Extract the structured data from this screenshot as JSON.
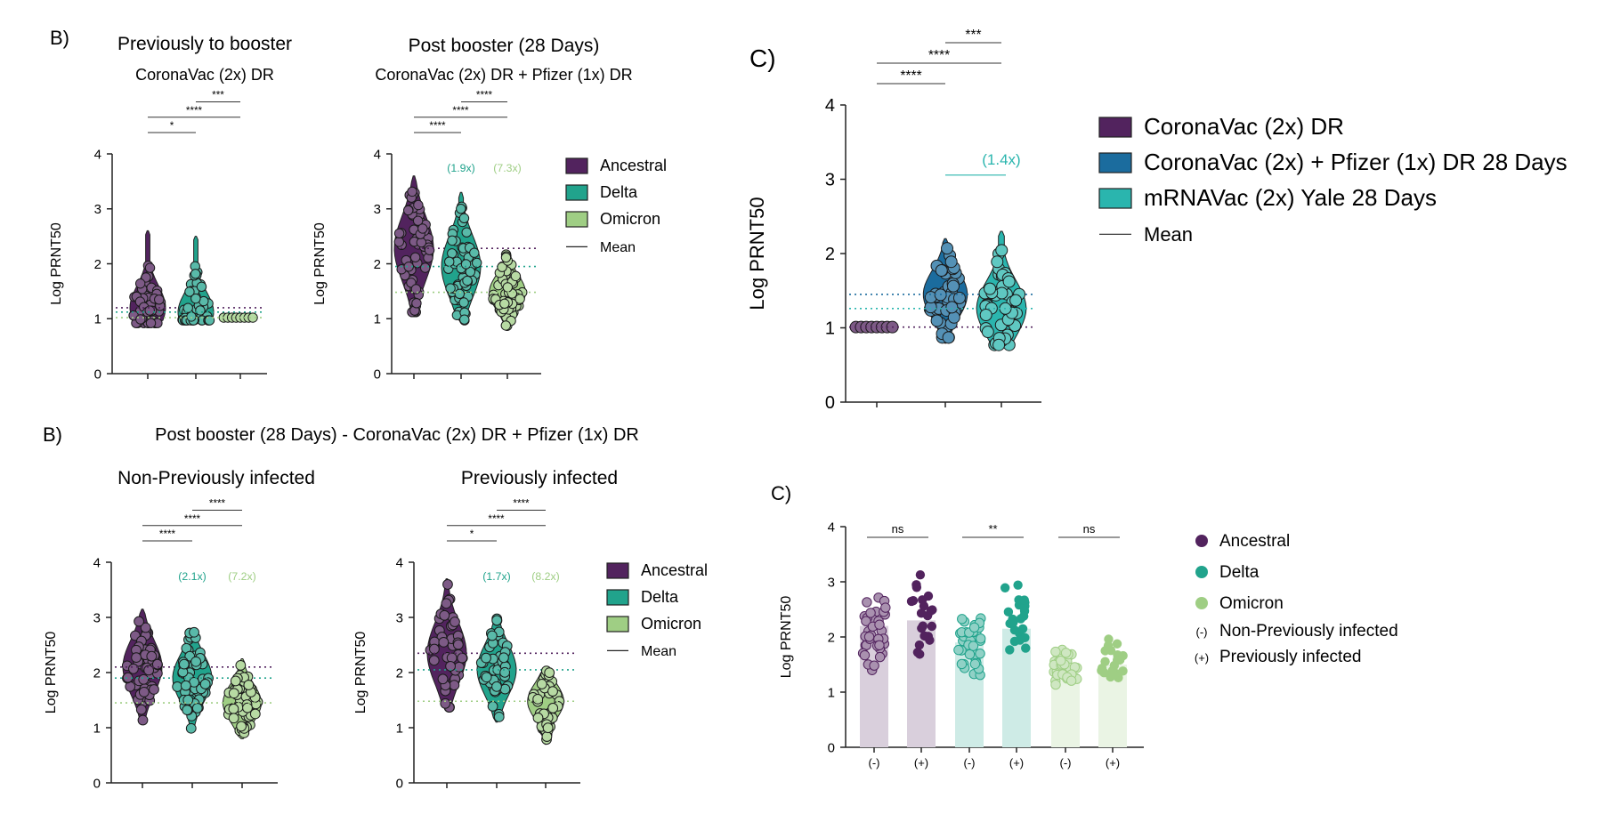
{
  "colors": {
    "ancestral": "#52235e",
    "delta": "#21a38c",
    "omicron": "#9fce84",
    "pfizer": "#1b6c9e",
    "yale": "#2ab5ae"
  },
  "chart_data": [
    {
      "id": "panelA",
      "type": "violin",
      "panel_letter": "B)",
      "title": "Previously to booster",
      "subtitle": "CoronaVac (2x) DR",
      "xlabel": "",
      "ylabel": "Log PRNT50",
      "ylim": [
        0,
        4
      ],
      "yticks": [
        "0",
        "1",
        "2",
        "3",
        "4"
      ],
      "series": [
        {
          "name": "Ancestral",
          "color": "ancestral",
          "min": 0.9,
          "max": 2.6,
          "mean": 1.2
        },
        {
          "name": "Delta",
          "color": "delta",
          "min": 0.95,
          "max": 2.5,
          "mean": 1.12
        },
        {
          "name": "Omicron",
          "color": "omicron",
          "min": 1.0,
          "max": 1.02,
          "mean": 1.02
        }
      ],
      "brackets": [
        {
          "from": 0,
          "to": 1,
          "label": "*"
        },
        {
          "from": 0,
          "to": 2,
          "label": "****"
        },
        {
          "from": 1,
          "to": 2,
          "label": "***"
        }
      ],
      "folds": [],
      "legend": ""
    },
    {
      "id": "panelB",
      "type": "violin",
      "panel_letter": "",
      "title": "Post booster (28 Days)",
      "subtitle": "CoronaVac (2x) DR + Pfizer (1x) DR",
      "xlabel": "",
      "ylabel": "Log PRNT50",
      "ylim": [
        0,
        4
      ],
      "yticks": [
        "0",
        "1",
        "2",
        "3",
        "4"
      ],
      "series": [
        {
          "name": "Ancestral",
          "color": "ancestral",
          "min": 1.1,
          "max": 3.6,
          "mean": 2.28
        },
        {
          "name": "Delta",
          "color": "delta",
          "min": 0.95,
          "max": 3.3,
          "mean": 1.95
        },
        {
          "name": "Omicron",
          "color": "omicron",
          "min": 0.85,
          "max": 2.2,
          "mean": 1.48
        }
      ],
      "brackets": [
        {
          "from": 0,
          "to": 1,
          "label": "****"
        },
        {
          "from": 0,
          "to": 2,
          "label": "****"
        },
        {
          "from": 1,
          "to": 2,
          "label": "****"
        }
      ],
      "folds": [
        {
          "index": 1,
          "label": "(1.9x)"
        },
        {
          "index": 2,
          "label": "(7.3x)"
        }
      ],
      "legend": "right"
    },
    {
      "id": "panelC",
      "type": "violin",
      "panel_letter": "C)",
      "title": "",
      "subtitle": "",
      "xlabel": "",
      "ylabel": "Log PRNT50",
      "ylim": [
        0,
        4
      ],
      "yticks": [
        "0",
        "1",
        "2",
        "3",
        "4"
      ],
      "series": [
        {
          "name": "CoronaVac (2x) DR",
          "color": "ancestral",
          "min": 0.97,
          "max": 1.03,
          "mean": 1.01
        },
        {
          "name": "CoronaVac (2x) + Pfizer (1x) DR 28 Days",
          "color": "pfizer",
          "min": 0.85,
          "max": 2.2,
          "mean": 1.45
        },
        {
          "name": "mRNAVac (2x) Yale 28 Days",
          "color": "yale",
          "min": 0.75,
          "max": 2.3,
          "mean": 1.26
        }
      ],
      "brackets": [
        {
          "from": 0,
          "to": 1,
          "label": "****"
        },
        {
          "from": 0,
          "to": 2,
          "label": "****"
        },
        {
          "from": 1,
          "to": 2,
          "label": "***"
        }
      ],
      "folds": [
        {
          "index": 2,
          "label": "(1.4x)",
          "underline": true
        }
      ],
      "legend": "right"
    },
    {
      "id": "panelD",
      "type": "violin",
      "panel_letter": "B)",
      "title": "Non-Previously infected",
      "subtitle": "",
      "xlabel": "",
      "ylabel": "Log PRNT50",
      "ylim": [
        0,
        4
      ],
      "yticks": [
        "0",
        "1",
        "2",
        "3",
        "4"
      ],
      "series": [
        {
          "name": "Ancestral",
          "color": "ancestral",
          "min": 1.1,
          "max": 3.15,
          "mean": 2.1
        },
        {
          "name": "Delta",
          "color": "delta",
          "min": 0.95,
          "max": 2.75,
          "mean": 1.9
        },
        {
          "name": "Omicron",
          "color": "omicron",
          "min": 0.8,
          "max": 2.25,
          "mean": 1.45
        }
      ],
      "brackets": [
        {
          "from": 0,
          "to": 1,
          "label": "****"
        },
        {
          "from": 0,
          "to": 2,
          "label": "****"
        },
        {
          "from": 1,
          "to": 2,
          "label": "****"
        }
      ],
      "folds": [
        {
          "index": 1,
          "label": "(2.1x)"
        },
        {
          "index": 2,
          "label": "(7.2x)"
        }
      ],
      "legend": ""
    },
    {
      "id": "panelE",
      "type": "violin",
      "panel_letter": "",
      "title": "Previously infected",
      "subtitle": "",
      "xlabel": "",
      "ylabel": "Log PRNT50",
      "ylim": [
        0,
        4
      ],
      "yticks": [
        "0",
        "1",
        "2",
        "3",
        "4"
      ],
      "series": [
        {
          "name": "Ancestral",
          "color": "ancestral",
          "min": 1.35,
          "max": 3.7,
          "mean": 2.35
        },
        {
          "name": "Delta",
          "color": "delta",
          "min": 1.1,
          "max": 3.05,
          "mean": 2.05
        },
        {
          "name": "Omicron",
          "color": "omicron",
          "min": 0.7,
          "max": 2.05,
          "mean": 1.48
        }
      ],
      "brackets": [
        {
          "from": 0,
          "to": 1,
          "label": "*"
        },
        {
          "from": 0,
          "to": 2,
          "label": "****"
        },
        {
          "from": 1,
          "to": 2,
          "label": "****"
        }
      ],
      "folds": [
        {
          "index": 1,
          "label": "(1.7x)"
        },
        {
          "index": 2,
          "label": "(8.2x)"
        }
      ],
      "legend": "right"
    },
    {
      "id": "panelF",
      "type": "bar",
      "panel_letter": "C)",
      "title": "",
      "subtitle": "",
      "xlabel": "",
      "ylabel": "Log PRNT50",
      "ylim": [
        0,
        4
      ],
      "yticks": [
        "0",
        "1",
        "2",
        "3",
        "4"
      ],
      "categories": [
        "(-)",
        "(+)",
        "(-)",
        "(+)",
        "(-)",
        "(+)"
      ],
      "values": [
        2.2,
        2.3,
        1.9,
        2.15,
        1.3,
        1.5
      ],
      "bar_colors": [
        "ancestral",
        "ancestral",
        "delta",
        "delta",
        "omicron",
        "omicron"
      ],
      "point_ranges": [
        [
          1.3,
          2.9
        ],
        [
          1.6,
          3.35
        ],
        [
          1.15,
          2.5
        ],
        [
          1.4,
          3.05
        ],
        [
          1.0,
          2.0
        ],
        [
          1.05,
          2.0
        ]
      ],
      "brackets": [
        {
          "from": 0,
          "to": 1,
          "label": "ns"
        },
        {
          "from": 2,
          "to": 3,
          "label": "**"
        },
        {
          "from": 4,
          "to": 5,
          "label": "ns"
        }
      ],
      "legend": "right"
    }
  ],
  "section_title": "Post booster (28 Days) - CoronaVac (2x) DR + Pfizer (1x) DR",
  "legends": {
    "variants": [
      {
        "label": "Ancestral",
        "color": "ancestral"
      },
      {
        "label": "Delta",
        "color": "delta"
      },
      {
        "label": "Omicron",
        "color": "omicron"
      }
    ],
    "mean_label": "Mean",
    "vaccines": [
      {
        "label": "CoronaVac (2x) DR",
        "color": "ancestral"
      },
      {
        "label": "CoronaVac (2x) + Pfizer (1x) DR 28 Days",
        "color": "pfizer"
      },
      {
        "label": "mRNAVac (2x) Yale 28 Days",
        "color": "yale"
      }
    ],
    "infection": [
      {
        "label": "Ancestral",
        "color": "ancestral"
      },
      {
        "label": "Delta",
        "color": "delta"
      },
      {
        "label": "Omicron",
        "color": "omicron"
      }
    ],
    "infection_keys": [
      {
        "symbol": "(-)",
        "label": "Non-Previously infected"
      },
      {
        "symbol": "(+)",
        "label": "Previously infected"
      }
    ]
  }
}
